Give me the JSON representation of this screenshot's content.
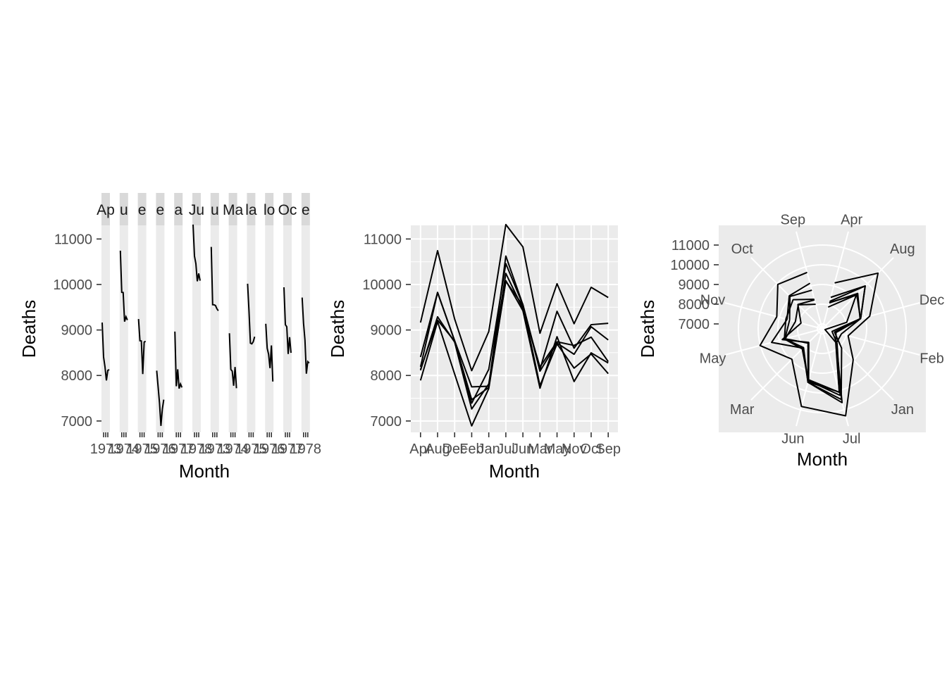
{
  "chart_data": [
    {
      "type": "line",
      "subtype": "seasonal-subseries",
      "xlabel": "Month",
      "ylabel": "Deaths",
      "ylim": [
        6750,
        11300
      ],
      "y_ticks": [
        7000,
        8000,
        9000,
        10000,
        11000
      ],
      "facets": [
        "Apr",
        "Aug",
        "Dec",
        "Feb",
        "Jan",
        "Jul",
        "Jun",
        "Mar",
        "May",
        "Nov",
        "Oct",
        "Sep"
      ],
      "facet_strip_text": [
        "Ap",
        "u",
        "e",
        "e",
        "a",
        "Ju",
        "u",
        "Ma",
        "la",
        "lo",
        "Oc",
        "e"
      ],
      "x_tick_labels": [
        "1973",
        "1974",
        "1975",
        "1976",
        "1977",
        "1978"
      ]
    },
    {
      "type": "line",
      "subtype": "seasonal",
      "xlabel": "Month",
      "ylabel": "Deaths",
      "ylim": [
        6750,
        11300
      ],
      "y_ticks": [
        7000,
        8000,
        9000,
        10000,
        11000
      ],
      "categories": [
        "Apr",
        "Aug",
        "Dec",
        "Feb",
        "Jan",
        "Jul",
        "Jun",
        "Mar",
        "May",
        "Nov",
        "Oct",
        "Sep"
      ],
      "series": [
        {
          "values": [
            9163,
            10743,
            9240,
            8106,
            8965,
            11317,
            10826,
            8928,
            10017,
            9137,
            9938,
            9713
          ]
        },
        {
          "values": [
            8405,
            9827,
            8764,
            7750,
            7764,
            10625,
            9556,
            8133,
            9411,
            8600,
            9117,
            9146
          ]
        },
        {
          "values": [
            8190,
            9823,
            8759,
            7392,
            8135,
            10458,
            9554,
            8095,
            8712,
            8466,
            9070,
            8781
          ]
        },
        {
          "values": [
            7891,
            9185,
            8032,
            6892,
            7713,
            10071,
            9538,
            7775,
            8695,
            8162,
            8473,
            8040
          ]
        },
        {
          "values": [
            8112,
            9290,
            8733,
            7264,
            7813,
            10243,
            9467,
            8187,
            8741,
            8660,
            8842,
            8305
          ]
        },
        {
          "values": [
            8130,
            9218,
            8752,
            7469,
            7736,
            10084,
            9423,
            7721,
            8852,
            7867,
            8498,
            8274
          ]
        }
      ]
    },
    {
      "type": "line",
      "subtype": "polar-seasonal",
      "xlabel": "Month",
      "ylabel": "Deaths",
      "r_ticks": [
        7000,
        8000,
        9000,
        10000,
        11000
      ],
      "rlim": [
        6750,
        11500
      ],
      "categories": [
        "Apr",
        "Aug",
        "Dec",
        "Feb",
        "Jan",
        "Jul",
        "Jun",
        "Mar",
        "May",
        "Nov",
        "Oct",
        "Sep"
      ],
      "series_ref": "same as chart 2"
    }
  ]
}
